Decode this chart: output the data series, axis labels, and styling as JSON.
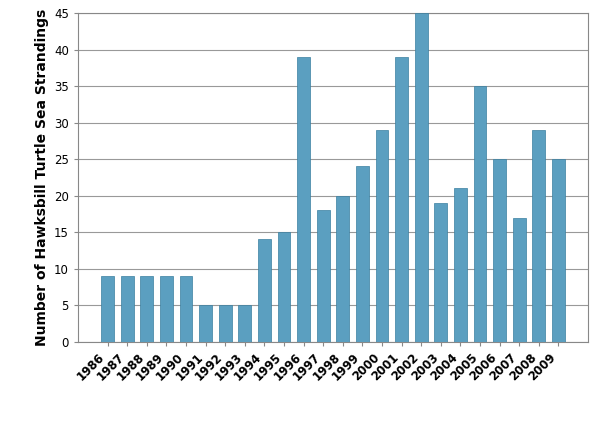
{
  "years": [
    "1986",
    "1987",
    "1988",
    "1989",
    "1990",
    "1991",
    "1992",
    "1993",
    "1994",
    "1995",
    "1996",
    "1997",
    "1998",
    "1999",
    "2000",
    "2001",
    "2002",
    "2003",
    "2004",
    "2005",
    "2006",
    "2007",
    "2008",
    "2009"
  ],
  "values": [
    9,
    9,
    9,
    9,
    9,
    5,
    5,
    5,
    14,
    15,
    39,
    18,
    20,
    24,
    29,
    39,
    45,
    19,
    21,
    35,
    25,
    17,
    29,
    25
  ],
  "bar_color": "#5b9fc0",
  "ylabel": "Number of Hawksbill Turtle Sea Strandings",
  "ylim": [
    0,
    45
  ],
  "yticks": [
    0,
    5,
    10,
    15,
    20,
    25,
    30,
    35,
    40,
    45
  ],
  "background_color": "#ffffff",
  "grid_color": "#999999",
  "ylabel_fontsize": 10,
  "tick_fontsize": 8.5,
  "bar_width": 0.65
}
